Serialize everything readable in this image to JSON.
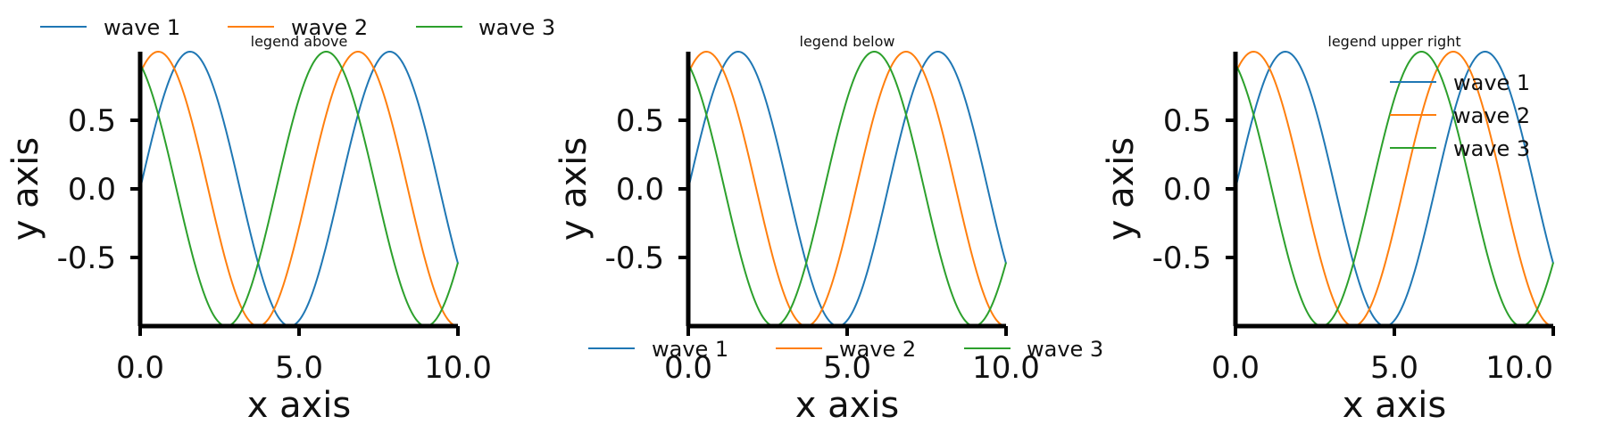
{
  "chart_data": [
    {
      "type": "line",
      "title": "legend above",
      "xlabel": "x axis",
      "ylabel": "y axis",
      "xlim": [
        0,
        10
      ],
      "ylim": [
        -1,
        1
      ],
      "xticks": [
        "0.0",
        "5.0",
        "10.0"
      ],
      "yticks": [
        "0.5",
        "0.0",
        "-0.5"
      ],
      "legend_placement": "above",
      "series": [
        {
          "name": "wave 1",
          "color": "#1f77b4",
          "function": "sin(x)",
          "x": [
            0,
            1,
            2,
            3,
            4,
            5,
            6,
            7,
            8,
            9,
            10
          ],
          "y": [
            0.0,
            0.841,
            0.909,
            0.141,
            -0.757,
            -0.959,
            -0.279,
            0.657,
            0.989,
            0.412,
            -0.544
          ]
        },
        {
          "name": "wave 2",
          "color": "#ff7f0e",
          "function": "sin(x+1)",
          "x": [
            0,
            1,
            2,
            3,
            4,
            5,
            6,
            7,
            8,
            9,
            10
          ],
          "y": [
            0.841,
            0.909,
            0.141,
            -0.757,
            -0.959,
            -0.279,
            0.657,
            0.989,
            0.412,
            -0.544,
            -1.0
          ]
        },
        {
          "name": "wave 3",
          "color": "#2ca02c",
          "function": "sin(x+2)",
          "x": [
            0,
            1,
            2,
            3,
            4,
            5,
            6,
            7,
            8,
            9,
            10
          ],
          "y": [
            0.909,
            0.141,
            -0.757,
            -0.959,
            -0.279,
            0.657,
            0.989,
            0.412,
            -0.544,
            -1.0,
            -0.537
          ]
        }
      ]
    },
    {
      "type": "line",
      "title": "legend below",
      "xlabel": "x axis",
      "ylabel": "y axis",
      "xlim": [
        0,
        10
      ],
      "ylim": [
        -1,
        1
      ],
      "xticks": [
        "0.0",
        "5.0",
        "10.0"
      ],
      "yticks": [
        "0.5",
        "0.0",
        "-0.5"
      ],
      "legend_placement": "below",
      "series": [
        {
          "name": "wave 1",
          "color": "#1f77b4",
          "function": "sin(x)",
          "x": [
            0,
            1,
            2,
            3,
            4,
            5,
            6,
            7,
            8,
            9,
            10
          ],
          "y": [
            0.0,
            0.841,
            0.909,
            0.141,
            -0.757,
            -0.959,
            -0.279,
            0.657,
            0.989,
            0.412,
            -0.544
          ]
        },
        {
          "name": "wave 2",
          "color": "#ff7f0e",
          "function": "sin(x+1)",
          "x": [
            0,
            1,
            2,
            3,
            4,
            5,
            6,
            7,
            8,
            9,
            10
          ],
          "y": [
            0.841,
            0.909,
            0.141,
            -0.757,
            -0.959,
            -0.279,
            0.657,
            0.989,
            0.412,
            -0.544,
            -1.0
          ]
        },
        {
          "name": "wave 3",
          "color": "#2ca02c",
          "function": "sin(x+2)",
          "x": [
            0,
            1,
            2,
            3,
            4,
            5,
            6,
            7,
            8,
            9,
            10
          ],
          "y": [
            0.909,
            0.141,
            -0.757,
            -0.959,
            -0.279,
            0.657,
            0.989,
            0.412,
            -0.544,
            -1.0,
            -0.537
          ]
        }
      ]
    },
    {
      "type": "line",
      "title": "legend upper right",
      "xlabel": "x axis",
      "ylabel": "y axis",
      "xlim": [
        0,
        10
      ],
      "ylim": [
        -1,
        1
      ],
      "xticks": [
        "0.0",
        "5.0",
        "10.0"
      ],
      "yticks": [
        "0.5",
        "0.0",
        "-0.5"
      ],
      "legend_placement": "upper right",
      "series": [
        {
          "name": "wave 1",
          "color": "#1f77b4",
          "function": "sin(x)",
          "x": [
            0,
            1,
            2,
            3,
            4,
            5,
            6,
            7,
            8,
            9,
            10
          ],
          "y": [
            0.0,
            0.841,
            0.909,
            0.141,
            -0.757,
            -0.959,
            -0.279,
            0.657,
            0.989,
            0.412,
            -0.544
          ]
        },
        {
          "name": "wave 2",
          "color": "#ff7f0e",
          "function": "sin(x+1)",
          "x": [
            0,
            1,
            2,
            3,
            4,
            5,
            6,
            7,
            8,
            9,
            10
          ],
          "y": [
            0.841,
            0.909,
            0.141,
            -0.757,
            -0.959,
            -0.279,
            0.657,
            0.989,
            0.412,
            -0.544,
            -1.0
          ]
        },
        {
          "name": "wave 3",
          "color": "#2ca02c",
          "function": "sin(x+2)",
          "x": [
            0,
            1,
            2,
            3,
            4,
            5,
            6,
            7,
            8,
            9,
            10
          ],
          "y": [
            0.909,
            0.141,
            -0.757,
            -0.959,
            -0.279,
            0.657,
            0.989,
            0.412,
            -0.544,
            -1.0,
            -0.537
          ]
        }
      ]
    }
  ]
}
